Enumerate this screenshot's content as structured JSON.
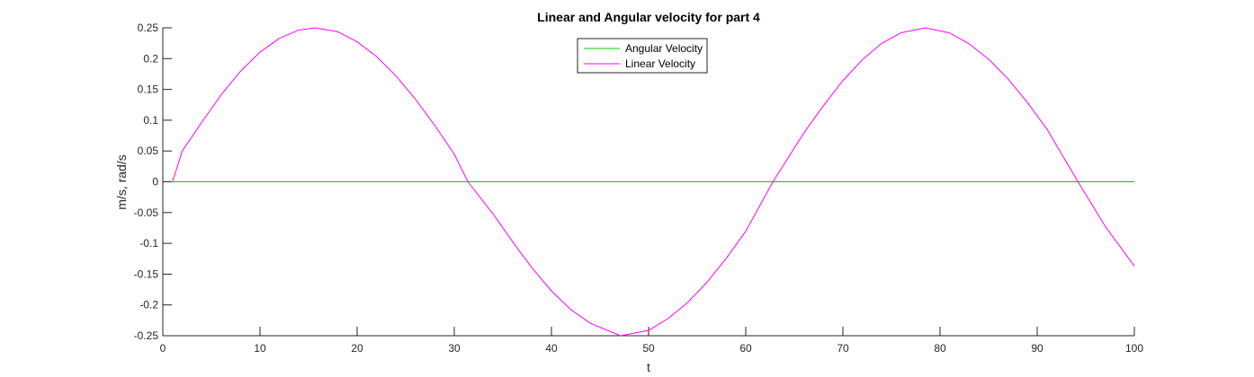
{
  "chart_data": {
    "type": "line",
    "title": "Linear and Angular velocity for part 4",
    "xlabel": "t",
    "ylabel": "m/s, rad/s",
    "xlim": [
      0,
      100
    ],
    "ylim": [
      -0.25,
      0.25
    ],
    "xticks": [
      0,
      10,
      20,
      30,
      40,
      50,
      60,
      70,
      80,
      90,
      100
    ],
    "xtick_labels": [
      "0",
      "10",
      "20",
      "30",
      "40",
      "50",
      "60",
      "70",
      "80",
      "90",
      "100"
    ],
    "yticks": [
      -0.25,
      -0.2,
      -0.15,
      -0.1,
      -0.05,
      0,
      0.05,
      0.1,
      0.15,
      0.2,
      0.25
    ],
    "ytick_labels": [
      "-0.25",
      "-0.2",
      "-0.15",
      "-0.1",
      "-0.05",
      "0",
      "0.05",
      "0.1",
      "0.15",
      "0.2",
      "0.25"
    ],
    "grid": false,
    "legend_position": "top-center",
    "series": [
      {
        "name": "Angular Velocity",
        "color": "#00cc00",
        "x": [
          1,
          100
        ],
        "y": [
          0,
          0
        ]
      },
      {
        "name": "Linear Velocity",
        "color": "#ff00ff",
        "x": [
          1,
          2,
          4,
          6,
          8,
          10,
          12,
          14,
          15.7,
          18,
          20,
          22,
          24,
          26,
          28,
          30,
          31.4,
          34,
          36,
          38,
          40,
          42,
          44,
          47.1,
          50,
          52,
          54,
          56,
          58,
          60,
          62.8,
          66,
          68,
          70,
          72,
          74,
          76,
          78.5,
          81,
          83,
          85,
          87,
          89,
          91,
          94.2,
          97,
          100
        ],
        "y": [
          0,
          0.05,
          0.0964,
          0.1412,
          0.1796,
          0.2104,
          0.233,
          0.2464,
          0.25,
          0.2437,
          0.2273,
          0.2034,
          0.1719,
          0.1341,
          0.0913,
          0.0448,
          0,
          -0.0523,
          -0.0972,
          -0.1398,
          -0.1773,
          -0.2077,
          -0.2297,
          -0.25,
          -0.2414,
          -0.2223,
          -0.1965,
          -0.1633,
          -0.1242,
          -0.0804,
          0,
          0.0797,
          0.1237,
          0.1642,
          0.1982,
          0.2248,
          0.242,
          0.25,
          0.2416,
          0.224,
          0.1992,
          0.167,
          0.1286,
          0.0856,
          0,
          -0.0723,
          -0.137
        ]
      }
    ]
  }
}
